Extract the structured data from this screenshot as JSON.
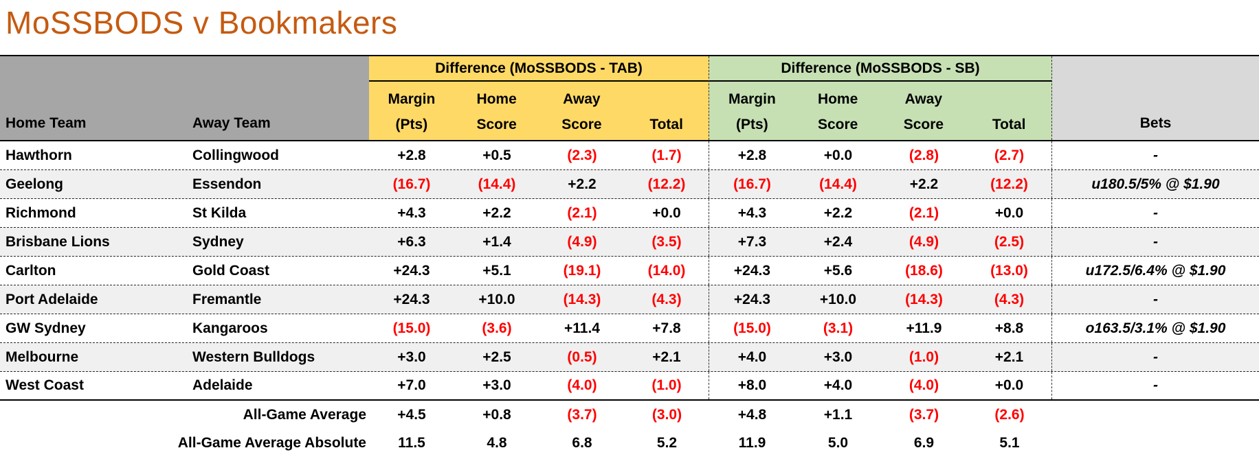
{
  "title": "MoSSBODS v Bookmakers",
  "colors": {
    "title": "#C55A11",
    "left_header_bg": "#A6A6A6",
    "tab_header_bg": "#FFD966",
    "sb_header_bg": "#C6E0B4",
    "bets_header_bg": "#D9D9D9",
    "alt_row_bg": "#F0F0F0",
    "negative_value": "#FF0000"
  },
  "header": {
    "home_team": "Home Team",
    "away_team": "Away Team",
    "tab_group": "Difference (MoSSBODS - TAB)",
    "sb_group": "Difference (MoSSBODS - SB)",
    "bets": "Bets",
    "sub_headers": [
      {
        "top": "Margin",
        "bottom": "(Pts)"
      },
      {
        "top": "Home",
        "bottom": "Score"
      },
      {
        "top": "Away",
        "bottom": "Score"
      },
      {
        "top": "",
        "bottom": "Total"
      }
    ]
  },
  "rows": [
    {
      "home": "Hawthorn",
      "away": "Collingwood",
      "tab": [
        "+2.8",
        "+0.5",
        "(2.3)",
        "(1.7)"
      ],
      "sb": [
        "+2.8",
        "+0.0",
        "(2.8)",
        "(2.7)"
      ],
      "bets": "-"
    },
    {
      "home": "Geelong",
      "away": "Essendon",
      "tab": [
        "(16.7)",
        "(14.4)",
        "+2.2",
        "(12.2)"
      ],
      "sb": [
        "(16.7)",
        "(14.4)",
        "+2.2",
        "(12.2)"
      ],
      "bets": "u180.5/5% @ $1.90"
    },
    {
      "home": "Richmond",
      "away": "St Kilda",
      "tab": [
        "+4.3",
        "+2.2",
        "(2.1)",
        "+0.0"
      ],
      "sb": [
        "+4.3",
        "+2.2",
        "(2.1)",
        "+0.0"
      ],
      "bets": "-"
    },
    {
      "home": "Brisbane Lions",
      "away": "Sydney",
      "tab": [
        "+6.3",
        "+1.4",
        "(4.9)",
        "(3.5)"
      ],
      "sb": [
        "+7.3",
        "+2.4",
        "(4.9)",
        "(2.5)"
      ],
      "bets": "-"
    },
    {
      "home": "Carlton",
      "away": "Gold Coast",
      "tab": [
        "+24.3",
        "+5.1",
        "(19.1)",
        "(14.0)"
      ],
      "sb": [
        "+24.3",
        "+5.6",
        "(18.6)",
        "(13.0)"
      ],
      "bets": "u172.5/6.4% @ $1.90"
    },
    {
      "home": "Port Adelaide",
      "away": "Fremantle",
      "tab": [
        "+24.3",
        "+10.0",
        "(14.3)",
        "(4.3)"
      ],
      "sb": [
        "+24.3",
        "+10.0",
        "(14.3)",
        "(4.3)"
      ],
      "bets": "-"
    },
    {
      "home": "GW Sydney",
      "away": "Kangaroos",
      "tab": [
        "(15.0)",
        "(3.6)",
        "+11.4",
        "+7.8"
      ],
      "sb": [
        "(15.0)",
        "(3.1)",
        "+11.9",
        "+8.8"
      ],
      "bets": "o163.5/3.1% @ $1.90"
    },
    {
      "home": "Melbourne",
      "away": "Western Bulldogs",
      "tab": [
        "+3.0",
        "+2.5",
        "(0.5)",
        "+2.1"
      ],
      "sb": [
        "+4.0",
        "+3.0",
        "(1.0)",
        "+2.1"
      ],
      "bets": "-"
    },
    {
      "home": "West Coast",
      "away": "Adelaide",
      "tab": [
        "+7.0",
        "+3.0",
        "(4.0)",
        "(1.0)"
      ],
      "sb": [
        "+8.0",
        "+4.0",
        "(4.0)",
        "+0.0"
      ],
      "bets": "-"
    }
  ],
  "summary": [
    {
      "label": "All-Game Average",
      "tab": [
        "+4.5",
        "+0.8",
        "(3.7)",
        "(3.0)"
      ],
      "sb": [
        "+4.8",
        "+1.1",
        "(3.7)",
        "(2.6)"
      ]
    },
    {
      "label": "All-Game Average Absolute",
      "tab": [
        "11.5",
        "4.8",
        "6.8",
        "5.2"
      ],
      "sb": [
        "11.9",
        "5.0",
        "6.9",
        "5.1"
      ]
    }
  ]
}
